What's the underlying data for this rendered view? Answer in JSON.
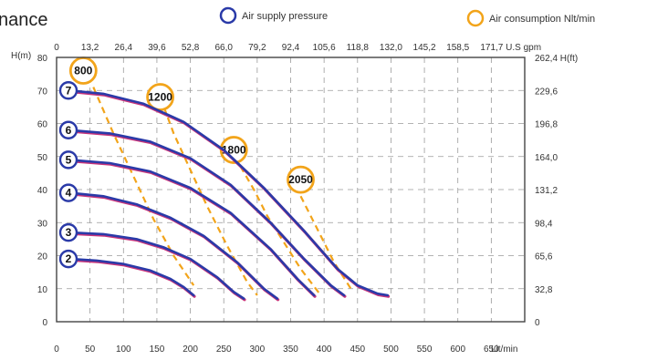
{
  "title": "nance",
  "legend": {
    "pressure_label": "Air supply pressure",
    "consumption_label": "Air consumption Nlt/min"
  },
  "colors": {
    "pressure": "#2a3aa8",
    "pressure_shadow": "#c8347a",
    "consumption": "#f2a41a",
    "grid": "#9a9a9a",
    "axis": "#444444"
  },
  "chart_data": {
    "type": "line",
    "title": "",
    "axes": {
      "x_bottom": {
        "label": "Lit/min",
        "min": 0,
        "max": 700,
        "ticks": [
          0,
          50,
          100,
          150,
          200,
          250,
          300,
          350,
          400,
          450,
          500,
          550,
          600,
          650
        ]
      },
      "x_top": {
        "label": "U.S gpm",
        "tick_labels": [
          "0",
          "13,2",
          "26,4",
          "39,6",
          "52,8",
          "66,0",
          "79,2",
          "92,4",
          "105,6",
          "118,8",
          "132,0",
          "145,2",
          "158,5",
          "171,7 U.S gpm"
        ]
      },
      "y_left": {
        "label": "H(m)",
        "min": 0,
        "max": 80,
        "ticks": [
          0,
          10,
          20,
          30,
          40,
          50,
          60,
          70,
          80
        ]
      },
      "y_right": {
        "ticks": [
          {
            "h_m": 0,
            "label": "0"
          },
          {
            "h_m": 10,
            "label": "32,8"
          },
          {
            "h_m": 20,
            "label": "65,6"
          },
          {
            "h_m": 30,
            "label": "98,4"
          },
          {
            "h_m": 40,
            "label": "131,2"
          },
          {
            "h_m": 50,
            "label": "164,0"
          },
          {
            "h_m": 60,
            "label": "196,8"
          },
          {
            "h_m": 70,
            "label": "229,6"
          },
          {
            "h_m": 80,
            "label": "262,4 H(ft)"
          }
        ]
      },
      "grid": true
    },
    "series": [
      {
        "name": "2",
        "start_y": 19,
        "points": [
          [
            20,
            19
          ],
          [
            60,
            18.5
          ],
          [
            100,
            17.5
          ],
          [
            140,
            15.5
          ],
          [
            170,
            13
          ],
          [
            190,
            10.5
          ],
          [
            205,
            8
          ]
        ]
      },
      {
        "name": "3",
        "start_y": 27,
        "points": [
          [
            20,
            27
          ],
          [
            70,
            26.5
          ],
          [
            120,
            25
          ],
          [
            160,
            22.5
          ],
          [
            200,
            19
          ],
          [
            240,
            13.5
          ],
          [
            265,
            9
          ],
          [
            280,
            7
          ]
        ]
      },
      {
        "name": "4",
        "start_y": 39,
        "points": [
          [
            20,
            39
          ],
          [
            70,
            38
          ],
          [
            120,
            35.5
          ],
          [
            170,
            31.5
          ],
          [
            220,
            26
          ],
          [
            270,
            18
          ],
          [
            310,
            10
          ],
          [
            330,
            7
          ]
        ]
      },
      {
        "name": "5",
        "start_y": 49,
        "points": [
          [
            20,
            49
          ],
          [
            80,
            48
          ],
          [
            140,
            45.5
          ],
          [
            200,
            40.5
          ],
          [
            260,
            33
          ],
          [
            320,
            22
          ],
          [
            360,
            13
          ],
          [
            385,
            8
          ]
        ]
      },
      {
        "name": "6",
        "start_y": 58,
        "points": [
          [
            20,
            58
          ],
          [
            80,
            57
          ],
          [
            140,
            54.5
          ],
          [
            200,
            49.5
          ],
          [
            260,
            41.5
          ],
          [
            320,
            30
          ],
          [
            370,
            19
          ],
          [
            410,
            11
          ],
          [
            430,
            8
          ]
        ]
      },
      {
        "name": "7",
        "start_y": 70,
        "points": [
          [
            20,
            70
          ],
          [
            70,
            69
          ],
          [
            130,
            66
          ],
          [
            190,
            60.5
          ],
          [
            250,
            52
          ],
          [
            310,
            40.5
          ],
          [
            370,
            27.5
          ],
          [
            420,
            16
          ],
          [
            450,
            11
          ],
          [
            480,
            8.5
          ],
          [
            495,
            8
          ]
        ]
      }
    ],
    "consumption_lines": [
      {
        "name": "800",
        "bubble": [
          40,
          76
        ],
        "points": [
          [
            55,
            71
          ],
          [
            85,
            57
          ],
          [
            115,
            44
          ],
          [
            145,
            31
          ],
          [
            175,
            20
          ],
          [
            205,
            11
          ]
        ]
      },
      {
        "name": "1200",
        "bubble": [
          155,
          68
        ],
        "points": [
          [
            155,
            68
          ],
          [
            175,
            57
          ],
          [
            200,
            46
          ],
          [
            225,
            35
          ],
          [
            255,
            23
          ],
          [
            285,
            12
          ],
          [
            300,
            8
          ]
        ]
      },
      {
        "name": "1800",
        "bubble": [
          265,
          52
        ],
        "points": [
          [
            275,
            47
          ],
          [
            295,
            40
          ],
          [
            315,
            32
          ],
          [
            340,
            24
          ],
          [
            365,
            16
          ],
          [
            395,
            8
          ]
        ]
      },
      {
        "name": "2050",
        "bubble": [
          365,
          43
        ],
        "points": [
          [
            365,
            38
          ],
          [
            380,
            32
          ],
          [
            395,
            26
          ],
          [
            415,
            18
          ],
          [
            440,
            10
          ]
        ]
      }
    ]
  }
}
